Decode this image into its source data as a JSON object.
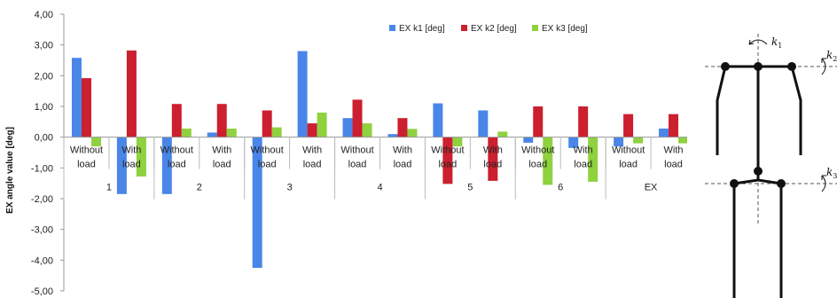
{
  "chart_data": {
    "type": "bar",
    "ylabel": "EX angle value [deg]",
    "ylim": [
      -5,
      4
    ],
    "yticks": [
      "4,00",
      "3,00",
      "2,00",
      "1,00",
      "0,00",
      "-1,00",
      "-2,00",
      "-3,00",
      "-4,00",
      "-5,00"
    ],
    "grid": false,
    "legend_position": "top-right",
    "groups": [
      {
        "label": "1",
        "categories": [
          "Without\nload",
          "With\nload"
        ]
      },
      {
        "label": "2",
        "categories": [
          "Without\nload",
          "With\nload"
        ]
      },
      {
        "label": "3",
        "categories": [
          "Without\nload",
          "With\nload"
        ]
      },
      {
        "label": "4",
        "categories": [
          "Without\nload",
          "With\nload"
        ]
      },
      {
        "label": "5",
        "categories": [
          "Without\nload",
          "With\nload"
        ]
      },
      {
        "label": "6",
        "categories": [
          "Without\nload",
          "With\nload"
        ]
      },
      {
        "label": "EX",
        "categories": [
          "Without\nload",
          "With\nload"
        ]
      }
    ],
    "series": [
      {
        "name": "EX k1 [deg]",
        "color": "#4a86e8",
        "values": [
          2.58,
          -1.85,
          -1.85,
          0.15,
          -4.25,
          2.8,
          0.62,
          0.1,
          1.1,
          0.87,
          -0.18,
          -0.35,
          -0.3,
          0.28
        ]
      },
      {
        "name": "EX k2 [deg]",
        "color": "#cc1f2f",
        "values": [
          1.92,
          2.82,
          1.08,
          1.08,
          0.87,
          0.45,
          1.22,
          0.62,
          -1.52,
          -1.42,
          1.0,
          1.0,
          0.75,
          0.75
        ]
      },
      {
        "name": "EX k3 [deg]",
        "color": "#8fd13f",
        "values": [
          -0.3,
          -1.28,
          0.28,
          0.28,
          0.32,
          0.8,
          0.45,
          0.27,
          -0.3,
          0.18,
          -1.55,
          -1.45,
          -0.2,
          -0.2
        ]
      }
    ]
  },
  "figure": {
    "labels": [
      {
        "base": "k",
        "sub": "1"
      },
      {
        "base": "k",
        "sub": "2"
      },
      {
        "base": "k",
        "sub": "3"
      }
    ]
  }
}
